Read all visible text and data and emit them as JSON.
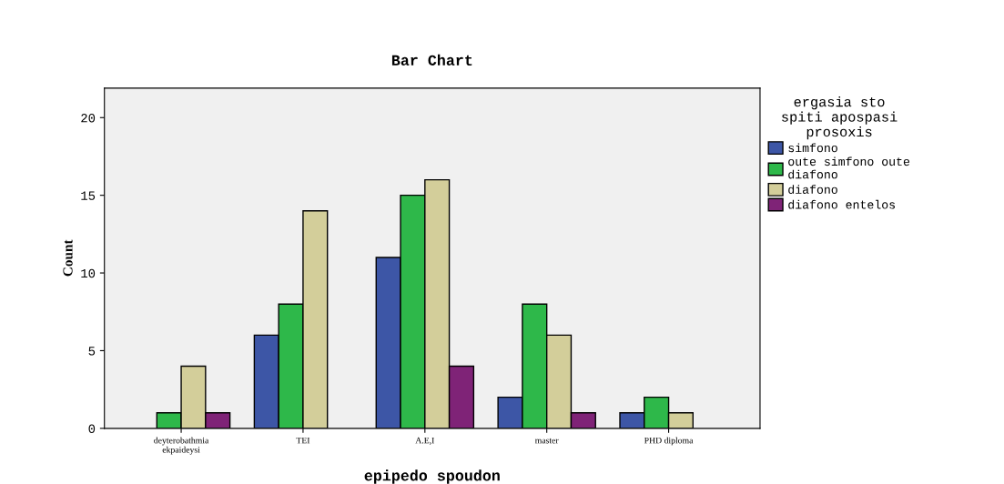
{
  "chart_data": {
    "type": "bar",
    "title": "Bar Chart",
    "xlabel": "epipedo spoudon",
    "ylabel": "Count",
    "legend_title": "ergasia sto\nspiti apospasi\nprosoxis",
    "categories": [
      "deyterobathmia\nekpaideysi",
      "TEI",
      "A.E,I",
      "master",
      "PHD diploma"
    ],
    "series": [
      {
        "name": "simfono",
        "color": "#3d56a6",
        "values": [
          null,
          6,
          11,
          2,
          1
        ]
      },
      {
        "name": "oute simfono oute\ndiafono",
        "color": "#2eb84a",
        "values": [
          1,
          8,
          15,
          8,
          2
        ]
      },
      {
        "name": "diafono",
        "color": "#d3ce9a",
        "values": [
          4,
          14,
          16,
          6,
          1
        ]
      },
      {
        "name": "diafono entelos",
        "color": "#7f2377",
        "values": [
          1,
          null,
          4,
          1,
          null
        ]
      }
    ],
    "ylim": [
      0,
      21.9
    ],
    "yticks": [
      0,
      5,
      10,
      15,
      20
    ],
    "grid": false,
    "legend": "right"
  }
}
